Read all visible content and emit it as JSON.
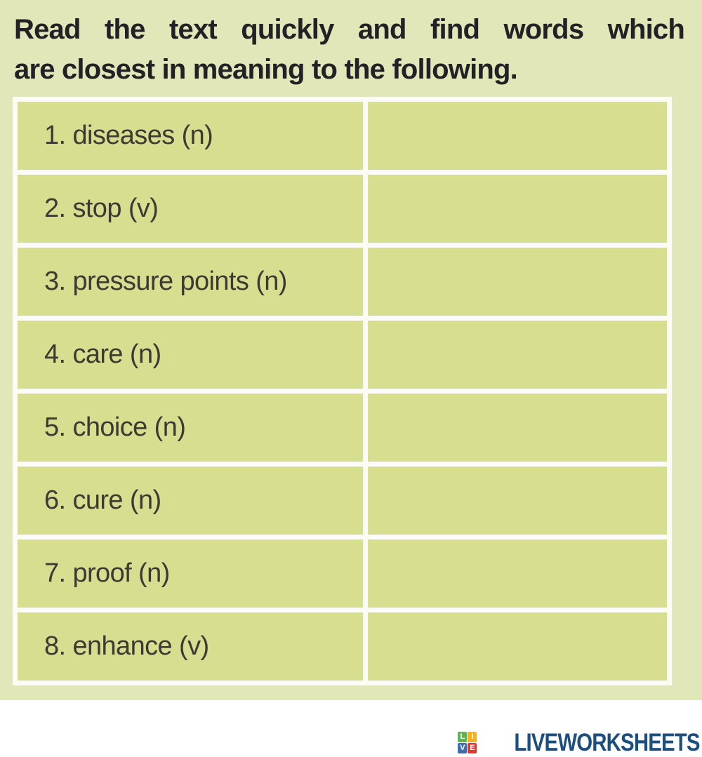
{
  "title": {
    "line1": "Read the text quickly and find words which",
    "line2": "are closest in meaning to the following."
  },
  "table": {
    "rows": [
      {
        "label": "1. diseases (n)",
        "answer": ""
      },
      {
        "label": "2. stop (v)",
        "answer": ""
      },
      {
        "label": "3. pressure points (n)",
        "answer": ""
      },
      {
        "label": "4. care (n)",
        "answer": ""
      },
      {
        "label": "5. choice (n)",
        "answer": ""
      },
      {
        "label": "6. cure (n)",
        "answer": ""
      },
      {
        "label": "7. proof (n)",
        "answer": ""
      },
      {
        "label": "8. enhance (v)",
        "answer": ""
      }
    ]
  },
  "footer": {
    "brand": "LIVEWORKSHEETS",
    "logo_squares": [
      {
        "letter": "L",
        "color": "#5eb54f"
      },
      {
        "letter": "I",
        "color": "#f7b018"
      },
      {
        "letter": "V",
        "color": "#3e6db4"
      },
      {
        "letter": "E",
        "color": "#e03a30"
      }
    ]
  },
  "colors": {
    "page_background": "#e2e7ba",
    "cell_background": "#d8de90",
    "table_border": "#fcfcf4",
    "title_text": "#222226",
    "row_text": "#3b3b33",
    "brand_text": "#1d4e80"
  }
}
